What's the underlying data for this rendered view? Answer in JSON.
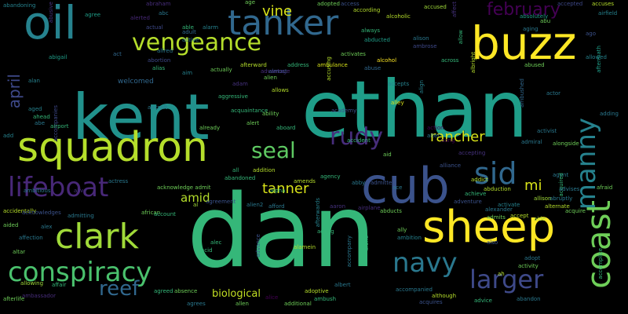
{
  "words": [
    {
      "text": "ethan",
      "size": 9,
      "color": "#1f9e89"
    },
    {
      "text": "dan",
      "size": 10,
      "color": "#35b779"
    },
    {
      "text": "kent",
      "size": 8,
      "color": "#21918c"
    },
    {
      "text": "oil",
      "size": 6,
      "color": "#26828e"
    },
    {
      "text": "squadron",
      "size": 7,
      "color": "#b5de2b"
    },
    {
      "text": "buzz",
      "size": 6,
      "color": "#fde725"
    },
    {
      "text": "sheep",
      "size": 6,
      "color": "#fde725"
    },
    {
      "text": "cub",
      "size": 6,
      "color": "#3b528b"
    },
    {
      "text": "tanker",
      "size": 5,
      "color": "#31688e"
    },
    {
      "text": "vengeance",
      "size": 4,
      "color": "#b5de2b"
    },
    {
      "text": "clark",
      "size": 5,
      "color": "#a0da39"
    },
    {
      "text": "conspiracy",
      "size": 4,
      "color": "#4ac16d"
    },
    {
      "text": "lifeboat",
      "size": 4,
      "color": "#482878"
    },
    {
      "text": "coast",
      "size": 5,
      "color": "#6ece58"
    },
    {
      "text": "manny",
      "size": 4,
      "color": "#26828e"
    },
    {
      "text": "sid",
      "size": 4,
      "color": "#31688e"
    },
    {
      "text": "rudy",
      "size": 4,
      "color": "#472d7b"
    },
    {
      "text": "seal",
      "size": 4,
      "color": "#5ec962"
    },
    {
      "text": "navy",
      "size": 4,
      "color": "#2a788e"
    },
    {
      "text": "larger",
      "size": 4,
      "color": "#3e4989"
    },
    {
      "text": "reef",
      "size": 3,
      "color": "#31688e"
    },
    {
      "text": "february",
      "size": 3,
      "color": "#440154"
    },
    {
      "text": "rancher",
      "size": 3,
      "color": "#d8e219"
    },
    {
      "text": "tanner",
      "size": 3,
      "color": "#d8e219"
    },
    {
      "text": "april",
      "size": 3,
      "color": "#3e4989"
    },
    {
      "text": "mi",
      "size": 3,
      "color": "#d8e219"
    },
    {
      "text": "vine",
      "size": 2,
      "color": "#d8e219"
    },
    {
      "text": "amid",
      "size": 2,
      "color": "#b5de2b"
    },
    {
      "text": "biological",
      "size": 2,
      "color": "#c2df23"
    },
    {
      "text": "welcomed",
      "size": 1,
      "color": "#31688e"
    },
    {
      "text": "abandoning",
      "color": "#26828e"
    },
    {
      "text": "agree",
      "color": "#1f9e89"
    },
    {
      "text": "abusive",
      "color": "#46327e"
    },
    {
      "text": "alerted",
      "color": "#482878"
    },
    {
      "text": "abc",
      "color": "#2a788e"
    },
    {
      "text": "abraham",
      "color": "#472d7b"
    },
    {
      "text": "actual",
      "color": "#3e4989"
    },
    {
      "text": "able",
      "color": "#35b779"
    },
    {
      "text": "alarm",
      "color": "#26828e"
    },
    {
      "text": "active",
      "color": "#2a788e"
    },
    {
      "text": "adult",
      "color": "#31688e"
    },
    {
      "text": "age",
      "color": "#6ece58"
    },
    {
      "text": "adopted",
      "color": "#6ece58"
    },
    {
      "text": "access",
      "color": "#3b528b"
    },
    {
      "text": "according",
      "color": "#b5de2b"
    },
    {
      "text": "accused",
      "color": "#a0da39"
    },
    {
      "text": "alcoholic",
      "color": "#b5de2b"
    },
    {
      "text": "always",
      "color": "#35b779"
    },
    {
      "text": "abducted",
      "color": "#1f9e89"
    },
    {
      "text": "alison",
      "color": "#2a788e"
    },
    {
      "text": "ambrose",
      "color": "#3e4989"
    },
    {
      "text": "allow",
      "color": "#35b779"
    },
    {
      "text": "affect",
      "color": "#46327e"
    },
    {
      "text": "absolutely",
      "color": "#1f9e89"
    },
    {
      "text": "aging",
      "color": "#2a788e"
    },
    {
      "text": "abu",
      "color": "#6ece58"
    },
    {
      "text": "accepted",
      "color": "#3e4989"
    },
    {
      "text": "accuses",
      "color": "#b5de2b"
    },
    {
      "text": "airfield",
      "color": "#26828e"
    },
    {
      "text": "ago",
      "color": "#3b528b"
    },
    {
      "text": "allowed",
      "color": "#26828e"
    },
    {
      "text": "aftermath",
      "color": "#1f9e89"
    },
    {
      "text": "abigail",
      "color": "#1f9e89"
    },
    {
      "text": "act",
      "color": "#31688e"
    },
    {
      "text": "alfred",
      "color": "#2a788e"
    },
    {
      "text": "abortion",
      "color": "#3e4989"
    },
    {
      "text": "alias",
      "color": "#35b779"
    },
    {
      "text": "aim",
      "color": "#26828e"
    },
    {
      "text": "advantage",
      "color": "#472d7b"
    },
    {
      "text": "adam",
      "color": "#46327e"
    },
    {
      "text": "actually",
      "color": "#6ece58"
    },
    {
      "text": "afterward",
      "color": "#b5de2b"
    },
    {
      "text": "address",
      "color": "#35b779"
    },
    {
      "text": "almost",
      "color": "#3b528b"
    },
    {
      "text": "ambulance",
      "color": "#d8e219"
    },
    {
      "text": "activates",
      "color": "#6ece58"
    },
    {
      "text": "alcohol",
      "color": "#fde725"
    },
    {
      "text": "abuse",
      "color": "#31688e"
    },
    {
      "text": "across",
      "color": "#35b779"
    },
    {
      "text": "albright",
      "color": "#b5de2b"
    },
    {
      "text": "alien",
      "color": "#6ece58"
    },
    {
      "text": "accusing",
      "color": "#b5de2b"
    },
    {
      "text": "abused",
      "color": "#6ece58"
    },
    {
      "text": "aggressive",
      "color": "#35b779"
    },
    {
      "text": "allows",
      "color": "#b5de2b"
    },
    {
      "text": "alan",
      "color": "#26828e"
    },
    {
      "text": "aged",
      "color": "#26828e"
    },
    {
      "text": "ahead",
      "color": "#35b779"
    },
    {
      "text": "abe",
      "color": "#2a788e"
    },
    {
      "text": "accompanies",
      "color": "#3e4989"
    },
    {
      "text": "airport",
      "color": "#35b779"
    },
    {
      "text": "aircraft",
      "color": "#2a788e"
    },
    {
      "text": "accepts",
      "color": "#26828e"
    },
    {
      "text": "align",
      "color": "#26828e"
    },
    {
      "text": "ambushed",
      "color": "#31688e"
    },
    {
      "text": "actor",
      "color": "#2a788e"
    },
    {
      "text": "acquaintance",
      "color": "#35b779"
    },
    {
      "text": "ability",
      "color": "#6ece58"
    },
    {
      "text": "alert",
      "color": "#6ece58"
    },
    {
      "text": "alley",
      "color": "#d8e219"
    },
    {
      "text": "academy",
      "color": "#3b528b"
    },
    {
      "text": "adding",
      "color": "#2a788e"
    },
    {
      "text": "add",
      "color": "#26828e"
    },
    {
      "text": "already",
      "color": "#6ece58"
    },
    {
      "text": "aboard",
      "color": "#35b779"
    },
    {
      "text": "action",
      "color": "#440154"
    },
    {
      "text": "alter",
      "color": "#2a788e"
    },
    {
      "text": "aid",
      "color": "#6ece58"
    },
    {
      "text": "aang",
      "color": "#440154"
    },
    {
      "text": "accident",
      "color": "#35b779"
    },
    {
      "text": "activist",
      "color": "#2a788e"
    },
    {
      "text": "admiral",
      "color": "#2a788e"
    },
    {
      "text": "alongside",
      "color": "#6ece58"
    },
    {
      "text": "addition",
      "color": "#b5de2b"
    },
    {
      "text": "amends",
      "color": "#b5de2b"
    },
    {
      "text": "accepting",
      "color": "#46327e"
    },
    {
      "text": "alliance",
      "color": "#3b528b"
    },
    {
      "text": "agent",
      "color": "#2a788e"
    },
    {
      "text": "actress",
      "color": "#2a788e"
    },
    {
      "text": "ambitious",
      "color": "#2a788e"
    },
    {
      "text": "alive",
      "color": "#46327e"
    },
    {
      "text": "acknowledge admit",
      "color": "#6ece58"
    },
    {
      "text": "all",
      "color": "#35b779"
    },
    {
      "text": "abandoned",
      "color": "#35b779"
    },
    {
      "text": "abby",
      "color": "#2a788e"
    },
    {
      "text": "ace",
      "color": "#2a788e"
    },
    {
      "text": "addict",
      "color": "#b5de2b"
    },
    {
      "text": "afraid",
      "color": "#6ece58"
    },
    {
      "text": "acquired",
      "color": "#35b779"
    },
    {
      "text": "agency",
      "color": "#35b779"
    },
    {
      "text": "admitted",
      "color": "#3b528b"
    },
    {
      "text": "abduction",
      "color": "#b5de2b"
    },
    {
      "text": "allison",
      "color": "#a0da39"
    },
    {
      "text": "advises",
      "color": "#2a788e"
    },
    {
      "text": "agreement",
      "color": "#3b528b"
    },
    {
      "text": "alpha",
      "color": "#35b779"
    },
    {
      "text": "achieve",
      "color": "#35b779"
    },
    {
      "text": "adventure",
      "color": "#3b528b"
    },
    {
      "text": "activate",
      "color": "#26828e"
    },
    {
      "text": "alternate",
      "color": "#b5de2b"
    },
    {
      "text": "abruptly",
      "color": "#2a788e"
    },
    {
      "text": "acquire",
      "color": "#6ece58"
    },
    {
      "text": "accidentally",
      "color": "#b5de2b"
    },
    {
      "text": "acknowledges",
      "color": "#3b528b"
    },
    {
      "text": "admitting",
      "color": "#2a788e"
    },
    {
      "text": "african",
      "color": "#6ece58"
    },
    {
      "text": "al",
      "color": "#a0da39"
    },
    {
      "text": "alien2",
      "color": "#2a788e"
    },
    {
      "text": "afford",
      "color": "#2a788e"
    },
    {
      "text": "afterwards",
      "color": "#26828e"
    },
    {
      "text": "aaron",
      "color": "#46327e"
    },
    {
      "text": "airplane",
      "color": "#472d7b"
    },
    {
      "text": "abducts",
      "color": "#6ece58"
    },
    {
      "text": "admits",
      "color": "#6ece58"
    },
    {
      "text": "alexander",
      "color": "#2a788e"
    },
    {
      "text": "accept",
      "color": "#b5de2b"
    },
    {
      "text": "aide",
      "color": "#a0da39"
    },
    {
      "text": "aided",
      "color": "#6ece58"
    },
    {
      "text": "alex",
      "color": "#2a788e"
    },
    {
      "text": "account",
      "color": "#35b779"
    },
    {
      "text": "ally",
      "color": "#6ece58"
    },
    {
      "text": "affection",
      "color": "#2a788e"
    },
    {
      "text": "alec",
      "color": "#35b779"
    },
    {
      "text": "advance",
      "color": "#3b528b"
    },
    {
      "text": "acting",
      "color": "#35b779"
    },
    {
      "text": "ambition",
      "color": "#26828e"
    },
    {
      "text": "accompany",
      "color": "#2a788e"
    },
    {
      "text": "alone",
      "color": "#35b779"
    },
    {
      "text": "altar",
      "color": "#6ece58"
    },
    {
      "text": "acid",
      "color": "#35b779"
    },
    {
      "text": "alamein",
      "color": "#b5de2b"
    },
    {
      "text": "also",
      "color": "#3b528b"
    },
    {
      "text": "activity",
      "color": "#6ece58"
    },
    {
      "text": "adopt",
      "color": "#2a788e"
    },
    {
      "text": "accomplice",
      "color": "#35b779"
    },
    {
      "text": "ah",
      "color": "#b5de2b"
    },
    {
      "text": "allowing",
      "color": "#a0da39"
    },
    {
      "text": "affair",
      "color": "#35b779"
    },
    {
      "text": "afterlife",
      "color": "#6ece58"
    },
    {
      "text": "ambassador",
      "color": "#472d7b"
    },
    {
      "text": "agreed",
      "color": "#35b779"
    },
    {
      "text": "absence",
      "color": "#6ece58"
    },
    {
      "text": "agrees",
      "color": "#2a788e"
    },
    {
      "text": "allen",
      "color": "#6ece58"
    },
    {
      "text": "alice",
      "color": "#440154"
    },
    {
      "text": "additional",
      "color": "#6ece58"
    },
    {
      "text": "adoptive",
      "color": "#b5de2b"
    },
    {
      "text": "ambush",
      "color": "#35b779"
    },
    {
      "text": "albert",
      "color": "#2a788e"
    },
    {
      "text": "accompanied",
      "color": "#2a788e"
    },
    {
      "text": "acquires",
      "color": "#3b528b"
    },
    {
      "text": "although",
      "color": "#b5de2b"
    },
    {
      "text": "advice",
      "color": "#35b779"
    },
    {
      "text": "abandon",
      "color": "#2a788e"
    }
  ]
}
